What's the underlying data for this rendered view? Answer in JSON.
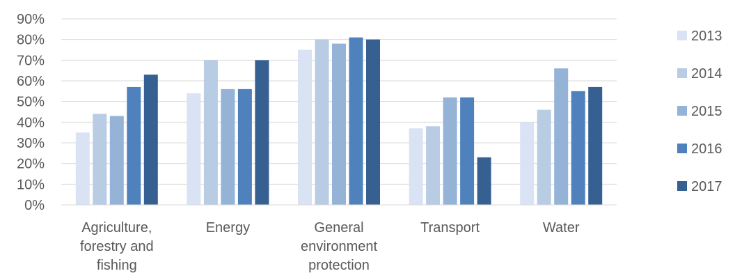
{
  "chart_data": {
    "type": "bar",
    "categories": [
      [
        "Agriculture,",
        "forestry and",
        "fishing"
      ],
      [
        "Energy"
      ],
      [
        "General",
        "environment",
        "protection"
      ],
      [
        "Transport"
      ],
      [
        "Water"
      ]
    ],
    "series": [
      {
        "name": "2013",
        "color": "#dae3f3",
        "values": [
          35,
          54,
          75,
          37,
          40
        ]
      },
      {
        "name": "2014",
        "color": "#b8cce4",
        "values": [
          44,
          70,
          80,
          38,
          46
        ]
      },
      {
        "name": "2015",
        "color": "#95b3d7",
        "values": [
          43,
          56,
          78,
          52,
          66
        ]
      },
      {
        "name": "2016",
        "color": "#4f81bd",
        "values": [
          57,
          56,
          81,
          52,
          55
        ]
      },
      {
        "name": "2017",
        "color": "#366092",
        "values": [
          63,
          70,
          80,
          23,
          57
        ]
      }
    ],
    "y_ticks": [
      "0%",
      "10%",
      "20%",
      "30%",
      "40%",
      "50%",
      "60%",
      "70%",
      "80%",
      "90%"
    ],
    "ylim": [
      0,
      90
    ],
    "y_unit": "%",
    "grid": true,
    "legend_position": "right"
  }
}
